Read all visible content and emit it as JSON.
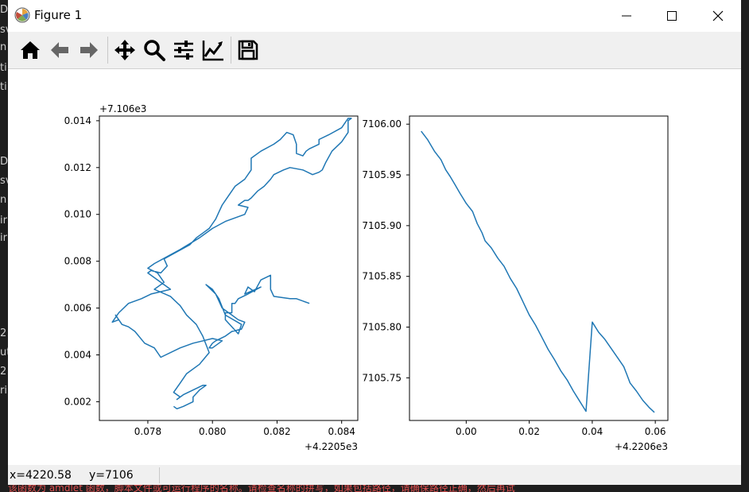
{
  "window": {
    "title": "Figure 1",
    "app_icon": "matplotlib-icon",
    "controls": [
      "minimize-icon",
      "maximize-icon",
      "close-icon"
    ]
  },
  "toolbar": {
    "buttons": [
      "home-icon",
      "back-icon",
      "forward-icon",
      "pan-icon",
      "zoom-icon",
      "configure-subplots-icon",
      "edit-axis-icon",
      "save-icon"
    ]
  },
  "status": {
    "x_text": "x=4220.58",
    "y_text": "y=7106"
  },
  "background_terminal": {
    "left_fragments": [
      "Da",
      "sv",
      "n",
      "ti",
      "ti",
      "Da",
      "sv",
      "n",
      "ir",
      "ir",
      "2",
      "ut",
      "2",
      "ri"
    ],
    "bottom_text": "该函数为 amdlet 函数，脚本文件或可运行程序的名称。请检查名称的拼写，如果包括路径，请确保路径正确，然后再试"
  },
  "chart_data": [
    {
      "type": "line",
      "title": "",
      "xlabel": "",
      "ylabel": "",
      "x_offset_text": "+4.2205e3",
      "y_offset_text": "+7.106e3",
      "xlim": [
        0.0765,
        0.0845
      ],
      "ylim": [
        0.0012,
        0.0142
      ],
      "xticks": [
        0.078,
        0.08,
        0.082,
        0.084
      ],
      "xtick_labels": [
        "0.078",
        "0.080",
        "0.082",
        "0.084"
      ],
      "yticks": [
        0.002,
        0.004,
        0.006,
        0.008,
        0.01,
        0.012,
        0.014
      ],
      "ytick_labels": [
        "0.002",
        "0.004",
        "0.006",
        "0.008",
        "0.010",
        "0.012",
        "0.014"
      ],
      "color": "#1f77b4",
      "series": [
        {
          "x": [
            0.083,
            0.0826,
            0.0824,
            0.0819,
            0.0818,
            0.0818,
            0.0815,
            0.0813,
            0.0811,
            0.081,
            0.0815,
            0.0811,
            0.0808,
            0.0807,
            0.0806,
            0.0806,
            0.0804,
            0.0804,
            0.0808,
            0.0809,
            0.0804,
            0.0802,
            0.08,
            0.0798,
            0.0801,
            0.0803,
            0.0806,
            0.0808,
            0.081,
            0.0809,
            0.0806,
            0.0804,
            0.0801,
            0.08,
            0.0799,
            0.08,
            0.0803,
            0.08,
            0.0794,
            0.079,
            0.0784,
            0.0782,
            0.0779,
            0.0776,
            0.0774,
            0.0772,
            0.0771,
            0.077,
            0.0771,
            0.0769,
            0.0771,
            0.0774,
            0.0778,
            0.0781,
            0.0784,
            0.0787,
            0.0785,
            0.078,
            0.0781,
            0.0784,
            0.0786,
            0.0785,
            0.0789,
            0.0793,
            0.0795,
            0.0797,
            0.0799,
            0.08,
            0.0801,
            0.0802,
            0.0803,
            0.0805,
            0.0807,
            0.081,
            0.0812,
            0.0812,
            0.0815,
            0.0819,
            0.0821,
            0.0823,
            0.0825,
            0.0826,
            0.0826,
            0.0828,
            0.0829,
            0.083,
            0.0833,
            0.0833,
            0.0836,
            0.084,
            0.0842,
            0.0843,
            0.0842,
            0.0842,
            0.084,
            0.0837,
            0.0835,
            0.0834,
            0.0833,
            0.0831,
            0.0828,
            0.0824,
            0.0822,
            0.0819,
            0.0818,
            0.0816,
            0.0814,
            0.0812,
            0.0811,
            0.081,
            0.0809,
            0.0808,
            0.0811,
            0.081,
            0.0804,
            0.08,
            0.0796,
            0.079,
            0.0786,
            0.0782,
            0.078,
            0.0783,
            0.0785,
            0.0782,
            0.0787,
            0.079,
            0.0792,
            0.0795,
            0.0797,
            0.0799,
            0.0796,
            0.0792,
            0.079,
            0.0788,
            0.079,
            0.0789,
            0.0791,
            0.0794,
            0.0797,
            0.0798,
            0.0796,
            0.0794,
            0.0794,
            0.0791,
            0.0789,
            0.0788
          ],
          "y": [
            0.0062,
            0.0064,
            0.0064,
            0.0065,
            0.0068,
            0.0074,
            0.0072,
            0.0067,
            0.0069,
            0.0066,
            0.0069,
            0.0066,
            0.0064,
            0.0062,
            0.0062,
            0.0058,
            0.0058,
            0.0055,
            0.0049,
            0.0053,
            0.0057,
            0.0064,
            0.0068,
            0.007,
            0.0066,
            0.006,
            0.0057,
            0.0055,
            0.0054,
            0.0051,
            0.005,
            0.0048,
            0.0046,
            0.0045,
            0.0043,
            0.0043,
            0.0046,
            0.0047,
            0.0045,
            0.0043,
            0.0039,
            0.0043,
            0.0045,
            0.005,
            0.0052,
            0.0053,
            0.0055,
            0.0057,
            0.0055,
            0.0054,
            0.0058,
            0.0062,
            0.0064,
            0.0066,
            0.0067,
            0.0068,
            0.007,
            0.0075,
            0.0076,
            0.0075,
            0.0078,
            0.0081,
            0.0084,
            0.0087,
            0.009,
            0.0092,
            0.0094,
            0.0096,
            0.0098,
            0.0101,
            0.0104,
            0.0108,
            0.0112,
            0.0115,
            0.0119,
            0.0124,
            0.0127,
            0.013,
            0.0132,
            0.0135,
            0.0134,
            0.013,
            0.0126,
            0.0125,
            0.0127,
            0.0128,
            0.013,
            0.0132,
            0.0134,
            0.0137,
            0.0141,
            0.0141,
            0.014,
            0.0135,
            0.0131,
            0.0127,
            0.0122,
            0.0119,
            0.0118,
            0.0117,
            0.0119,
            0.012,
            0.0119,
            0.0117,
            0.0115,
            0.0112,
            0.011,
            0.0107,
            0.0106,
            0.0106,
            0.0105,
            0.0104,
            0.0103,
            0.01,
            0.0097,
            0.0094,
            0.009,
            0.0085,
            0.0082,
            0.0079,
            0.0077,
            0.0075,
            0.0071,
            0.0068,
            0.0065,
            0.0061,
            0.0057,
            0.0053,
            0.0048,
            0.0041,
            0.0036,
            0.0032,
            0.0028,
            0.0024,
            0.0022,
            0.0021,
            0.0023,
            0.0025,
            0.0027,
            0.0027,
            0.0025,
            0.0022,
            0.002,
            0.0018,
            0.0017,
            0.0018
          ]
        }
      ]
    },
    {
      "type": "line",
      "title": "",
      "xlabel": "",
      "ylabel": "",
      "x_offset_text": "+4.2206e3",
      "y_offset_text": "",
      "xlim": [
        -0.018,
        0.064
      ],
      "ylim": [
        7105.708,
        7106.008
      ],
      "xticks": [
        0.0,
        0.02,
        0.04,
        0.06
      ],
      "xtick_labels": [
        "0.00",
        "0.02",
        "0.04",
        "0.06"
      ],
      "yticks": [
        7105.75,
        7105.8,
        7105.85,
        7105.9,
        7105.95,
        7106.0
      ],
      "ytick_labels": [
        "7105.75",
        "7105.80",
        "7105.85",
        "7105.90",
        "7105.95",
        "7106.00"
      ],
      "color": "#1f77b4",
      "series": [
        {
          "x": [
            -0.0143,
            -0.0123,
            -0.01,
            -0.008,
            -0.0065,
            -0.005,
            -0.0035,
            -0.002,
            0.0,
            0.002,
            0.0035,
            0.005,
            0.006,
            0.008,
            0.01,
            0.012,
            0.014,
            0.016,
            0.018,
            0.02,
            0.022,
            0.024,
            0.026,
            0.028,
            0.03,
            0.032,
            0.034,
            0.036,
            0.038,
            0.04,
            0.042,
            0.044,
            0.046,
            0.048,
            0.05,
            0.051,
            0.052,
            0.054,
            0.056,
            0.058,
            0.0597
          ],
          "y": [
            7105.993,
            7105.985,
            7105.973,
            7105.965,
            7105.955,
            7105.948,
            7105.94,
            7105.932,
            7105.922,
            7105.914,
            7105.902,
            7105.893,
            7105.885,
            7105.878,
            7105.868,
            7105.86,
            7105.848,
            7105.838,
            7105.825,
            7105.812,
            7105.802,
            7105.79,
            7105.778,
            7105.768,
            7105.757,
            7105.748,
            7105.737,
            7105.727,
            7105.717,
            7105.805,
            7105.795,
            7105.788,
            7105.779,
            7105.77,
            7105.761,
            7105.753,
            7105.745,
            7105.737,
            7105.728,
            7105.721,
            7105.716
          ]
        }
      ]
    }
  ]
}
